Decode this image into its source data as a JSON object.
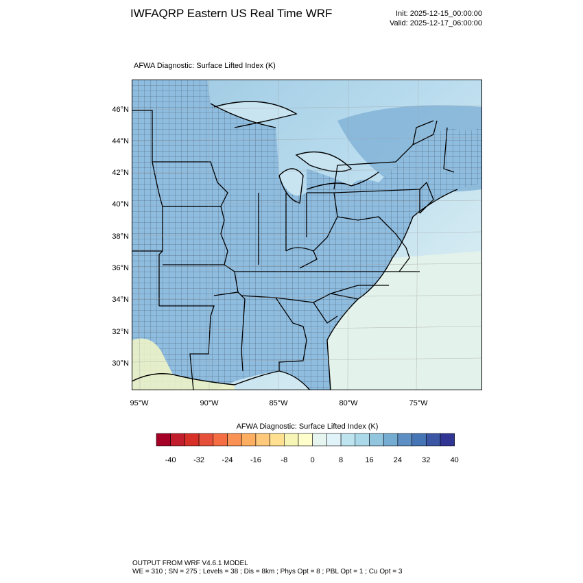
{
  "header": {
    "title": "IWFAQRP Eastern US Real Time WRF",
    "init": "Init: 2025-12-15_00:00:00",
    "valid": "Valid: 2025-12-17_06:00:00"
  },
  "map": {
    "field_title": "AFWA Diagnostic: Surface Lifted Index   (K)",
    "lat_labels": [
      "46°N",
      "44°N",
      "42°N",
      "40°N",
      "38°N",
      "36°N",
      "34°N",
      "32°N",
      "30°N"
    ],
    "lon_labels": [
      "95°W",
      "90°W",
      "85°W",
      "80°W",
      "75°W"
    ]
  },
  "colorbar": {
    "title": "AFWA Diagnostic: Surface Lifted Index  (K)",
    "tick_labels": [
      "-40",
      "-32",
      "-24",
      "-16",
      "-8",
      "0",
      "8",
      "16",
      "24",
      "32",
      "40"
    ],
    "colors": [
      "#a50026",
      "#c21d2c",
      "#d73027",
      "#e6503a",
      "#f46d43",
      "#f99254",
      "#fdae61",
      "#fec97a",
      "#fee090",
      "#f7f5b5",
      "#ffffcc",
      "#e6f5f0",
      "#e0f3f8",
      "#bde4ef",
      "#abd9e9",
      "#92c5de",
      "#74add1",
      "#5d8fc4",
      "#4575b4",
      "#3b56a4",
      "#313695"
    ]
  },
  "footer": {
    "line1": "OUTPUT FROM WRF V4.6.1 MODEL",
    "line2": "WE = 310 ; SN = 275 ; Levels = 38 ; Dis = 8km ; Phys Opt = 8 ; PBL Opt = 1 ; Cu Opt = 3"
  }
}
